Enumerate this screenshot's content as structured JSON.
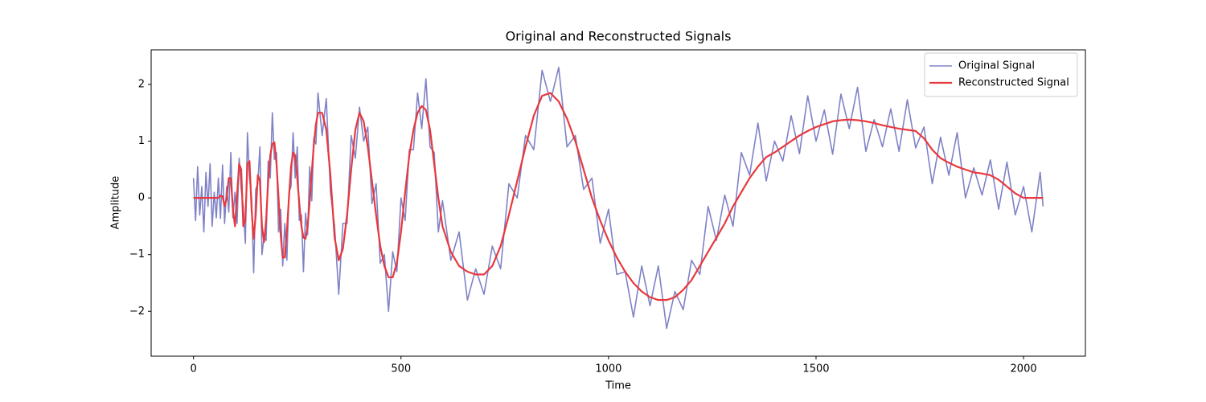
{
  "chart_data": {
    "type": "line",
    "title": "Original and Reconstructed Signals",
    "x_label": "Time",
    "y_label": "Amplitude",
    "x": [
      0,
      5,
      10,
      15,
      20,
      25,
      30,
      35,
      40,
      45,
      50,
      55,
      60,
      65,
      70,
      75,
      80,
      85,
      90,
      95,
      100,
      105,
      110,
      115,
      120,
      125,
      130,
      135,
      140,
      145,
      150,
      155,
      160,
      165,
      170,
      175,
      180,
      185,
      190,
      195,
      200,
      205,
      210,
      215,
      220,
      225,
      230,
      235,
      240,
      245,
      250,
      255,
      260,
      265,
      270,
      275,
      280,
      285,
      290,
      295,
      300,
      310,
      320,
      330,
      340,
      350,
      360,
      370,
      380,
      390,
      400,
      410,
      420,
      430,
      440,
      450,
      460,
      470,
      480,
      490,
      500,
      510,
      520,
      530,
      540,
      550,
      560,
      570,
      580,
      590,
      600,
      620,
      640,
      660,
      680,
      700,
      720,
      740,
      760,
      780,
      800,
      820,
      840,
      860,
      880,
      900,
      920,
      940,
      960,
      980,
      1000,
      1020,
      1040,
      1060,
      1080,
      1100,
      1120,
      1140,
      1160,
      1180,
      1200,
      1220,
      1240,
      1260,
      1280,
      1300,
      1320,
      1340,
      1360,
      1380,
      1400,
      1420,
      1440,
      1460,
      1480,
      1500,
      1520,
      1540,
      1560,
      1580,
      1600,
      1620,
      1640,
      1660,
      1680,
      1700,
      1720,
      1740,
      1760,
      1780,
      1800,
      1820,
      1840,
      1860,
      1880,
      1900,
      1920,
      1940,
      1960,
      1980,
      2000,
      2020,
      2040,
      2047
    ],
    "series": [
      {
        "name": "Original Signal",
        "color": "#7f82c6",
        "width": 1.6,
        "values": [
          0.35,
          -0.4,
          0.55,
          -0.3,
          0.2,
          -0.6,
          0.45,
          -0.15,
          0.6,
          -0.5,
          0.1,
          -0.35,
          0.35,
          -0.36,
          0.58,
          -0.45,
          0.2,
          -0.25,
          0.8,
          -0.35,
          0.1,
          -0.45,
          0.7,
          0.15,
          -0.15,
          -0.8,
          1.15,
          0.35,
          0,
          -1.32,
          0.15,
          0.25,
          0.9,
          -1.0,
          -0.68,
          -0.75,
          0.65,
          0.35,
          1.5,
          0.68,
          0.8,
          -0.6,
          -0.2,
          -1.2,
          -0.45,
          -1.1,
          0.1,
          0.2,
          1.15,
          0.35,
          0.9,
          -0.4,
          -0.3,
          -1.3,
          -0.27,
          -0.65,
          0.55,
          -0.05,
          1.05,
          0.95,
          1.85,
          1.1,
          1.75,
          0.1,
          -0.5,
          -1.7,
          -0.45,
          -0.45,
          1.1,
          0.7,
          1.6,
          1.0,
          1.25,
          -0.1,
          0.25,
          -1.15,
          -1.0,
          -2.0,
          -0.95,
          -1.3,
          0,
          -0.4,
          0.85,
          0.85,
          1.85,
          1.22,
          2.1,
          0.9,
          0.8,
          -0.6,
          -0.05,
          -1.1,
          -0.6,
          -1.8,
          -1.25,
          -1.7,
          -0.85,
          -1.25,
          0.25,
          0.0,
          1.1,
          0.85,
          2.25,
          1.7,
          2.3,
          0.9,
          1.1,
          0.15,
          0.35,
          -0.8,
          -0.2,
          -1.35,
          -1.3,
          -2.1,
          -1.2,
          -1.9,
          -1.2,
          -2.3,
          -1.65,
          -1.97,
          -1.1,
          -1.35,
          -0.15,
          -0.75,
          0.05,
          -0.5,
          0.8,
          0.4,
          1.32,
          0.3,
          1.0,
          0.65,
          1.45,
          0.78,
          1.8,
          1.0,
          1.55,
          0.77,
          1.83,
          1.22,
          1.95,
          0.82,
          1.38,
          0.9,
          1.57,
          0.82,
          1.73,
          0.88,
          1.25,
          0.25,
          1.07,
          0.4,
          1.15,
          0.0,
          0.53,
          0.05,
          0.67,
          -0.2,
          0.63,
          -0.3,
          0.2,
          -0.6,
          0.45,
          -0.15
        ]
      },
      {
        "name": "Reconstructed Signal",
        "color": "#e8383d",
        "width": 2.2,
        "values": [
          0,
          0,
          0,
          0,
          0,
          0,
          0,
          0,
          0,
          0,
          0,
          0,
          0,
          0.04,
          0.03,
          -0.15,
          0.0,
          0.35,
          0.35,
          -0.2,
          -0.5,
          0.05,
          0.6,
          0.5,
          -0.5,
          -0.4,
          0.6,
          0.65,
          -0.2,
          -0.72,
          -0.3,
          0.4,
          0.3,
          -0.5,
          -0.78,
          -0.4,
          0.3,
          0.75,
          0.95,
          0.98,
          0.6,
          0.0,
          -0.65,
          -1.05,
          -1.05,
          -0.6,
          0.0,
          0.55,
          0.8,
          0.75,
          0.35,
          -0.1,
          -0.5,
          -0.7,
          -0.72,
          -0.5,
          -0.05,
          0.45,
          0.95,
          1.3,
          1.5,
          1.5,
          1.2,
          0.4,
          -0.7,
          -1.1,
          -0.9,
          -0.3,
          0.5,
          1.2,
          1.5,
          1.35,
          0.9,
          0.3,
          -0.3,
          -0.85,
          -1.2,
          -1.4,
          -1.4,
          -1.15,
          -0.6,
          0.1,
          0.75,
          1.2,
          1.5,
          1.62,
          1.55,
          1.2,
          0.6,
          0.0,
          -0.5,
          -0.95,
          -1.2,
          -1.3,
          -1.35,
          -1.35,
          -1.2,
          -0.85,
          -0.3,
          0.3,
          0.9,
          1.45,
          1.8,
          1.85,
          1.7,
          1.4,
          1.0,
          0.5,
          0.0,
          -0.4,
          -0.75,
          -1.05,
          -1.3,
          -1.5,
          -1.65,
          -1.75,
          -1.8,
          -1.8,
          -1.75,
          -1.62,
          -1.45,
          -1.2,
          -0.95,
          -0.7,
          -0.45,
          -0.15,
          0.1,
          0.35,
          0.55,
          0.72,
          0.8,
          0.9,
          1.0,
          1.1,
          1.18,
          1.25,
          1.3,
          1.35,
          1.37,
          1.38,
          1.37,
          1.35,
          1.32,
          1.28,
          1.25,
          1.22,
          1.2,
          1.18,
          1.05,
          0.85,
          0.7,
          0.62,
          0.55,
          0.5,
          0.45,
          0.43,
          0.4,
          0.32,
          0.2,
          0.08,
          0,
          0,
          0,
          0
        ]
      }
    ],
    "xlim": [
      -102,
      2149
    ],
    "ylim": [
      -2.79,
      2.61
    ],
    "xticks": [
      0,
      500,
      1000,
      1500,
      2000
    ],
    "yticks": [
      {
        "value": -2,
        "label": "−2"
      },
      {
        "value": -1,
        "label": "−1"
      },
      0,
      1,
      2
    ],
    "legend": "upper right"
  }
}
